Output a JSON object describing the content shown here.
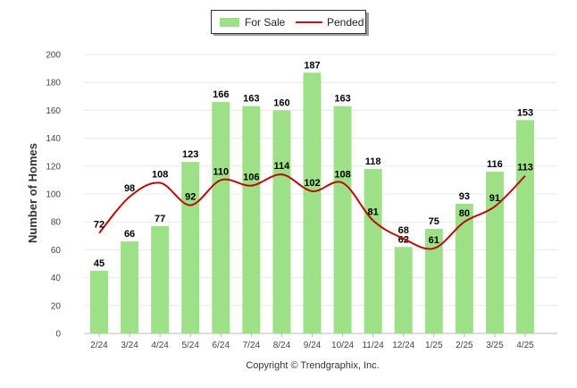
{
  "legend": {
    "for_sale_label": "For Sale",
    "pended_label": "Pended"
  },
  "footer": {
    "copyright": "Copyright © Trendgraphix, Inc."
  },
  "colors": {
    "for_sale": "#9ee088",
    "pended": "#b80a0a",
    "grid": "#e8e8e8",
    "axis": "#bbbbbb"
  },
  "chart_data": {
    "type": "bar",
    "categories": [
      "2/24",
      "3/24",
      "4/24",
      "5/24",
      "6/24",
      "7/24",
      "8/24",
      "9/24",
      "10/24",
      "11/24",
      "12/24",
      "1/25",
      "2/25",
      "3/25",
      "4/25"
    ],
    "series": [
      {
        "name": "For Sale",
        "type": "bar",
        "values": [
          45,
          66,
          77,
          123,
          166,
          163,
          160,
          187,
          163,
          118,
          62,
          75,
          93,
          116,
          153
        ]
      },
      {
        "name": "Pended",
        "type": "line",
        "values": [
          72,
          98,
          108,
          92,
          110,
          106,
          114,
          102,
          108,
          81,
          68,
          61,
          80,
          91,
          113
        ]
      }
    ],
    "ylabel": "Number of Homes",
    "xlabel": "",
    "ylim": [
      0,
      200
    ],
    "yticks": [
      0,
      20,
      40,
      60,
      80,
      100,
      120,
      140,
      160,
      180,
      200
    ],
    "grid": true,
    "legend_position": "top-center"
  }
}
